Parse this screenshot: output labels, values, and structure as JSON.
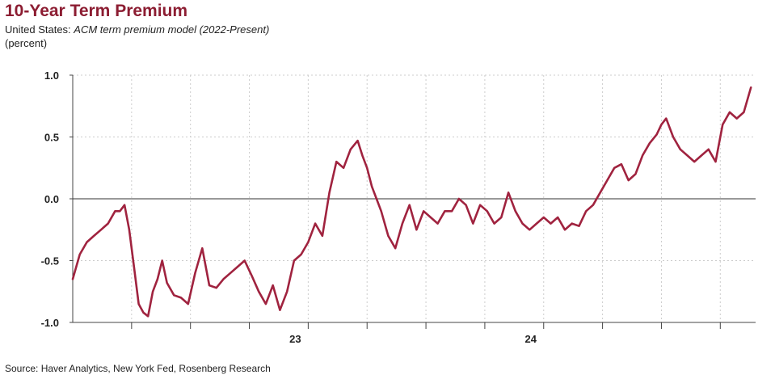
{
  "header": {
    "title": "10-Year Term Premium",
    "subtitle_prefix": "United States: ",
    "subtitle_model": "ACM term premium model (2022-Present)",
    "units": "(percent)"
  },
  "footer": {
    "source": "Source: Haver Analytics, New York Fed, Rosenberg Research"
  },
  "colors": {
    "line": "#a0233f",
    "grid": "#cccccc",
    "axis": "#444444",
    "title": "#8c1d32"
  },
  "chart_data": {
    "type": "line",
    "title": "10-Year Term Premium",
    "ylabel": "(percent)",
    "ylim": [
      -1.0,
      1.0
    ],
    "yticks": [
      1.0,
      0.5,
      0.0,
      -0.5,
      -1.0
    ],
    "ytick_labels": [
      "1.0",
      "0.5",
      "0.0",
      "-0.5",
      "-1.0"
    ],
    "xlim": [
      2022.0,
      2024.9
    ],
    "xticks": [
      2022.25,
      2022.5,
      2022.75,
      2023.0,
      2023.25,
      2023.5,
      2023.75,
      2024.0,
      2024.25,
      2024.5,
      2024.75
    ],
    "xtick_labels": [
      {
        "x": 2023.0,
        "label": "23"
      },
      {
        "x": 2024.0,
        "label": "24"
      }
    ],
    "grid": true,
    "legend": "none",
    "series": [
      {
        "x": [
          2022.0,
          2022.03,
          2022.06,
          2022.09,
          2022.12,
          2022.15,
          2022.18,
          2022.2,
          2022.22,
          2022.24,
          2022.26,
          2022.28,
          2022.3,
          2022.32,
          2022.34,
          2022.36,
          2022.38,
          2022.4,
          2022.43,
          2022.46,
          2022.49,
          2022.52,
          2022.55,
          2022.58,
          2022.61,
          2022.64,
          2022.67,
          2022.7,
          2022.73,
          2022.76,
          2022.79,
          2022.82,
          2022.85,
          2022.88,
          2022.91,
          2022.94,
          2022.97,
          2023.0,
          2023.03,
          2023.06,
          2023.09,
          2023.12,
          2023.15,
          2023.18,
          2023.21,
          2023.23,
          2023.25,
          2023.27,
          2023.29,
          2023.31,
          2023.34,
          2023.37,
          2023.4,
          2023.43,
          2023.46,
          2023.49,
          2023.52,
          2023.55,
          2023.58,
          2023.61,
          2023.64,
          2023.67,
          2023.7,
          2023.73,
          2023.76,
          2023.79,
          2023.82,
          2023.85,
          2023.88,
          2023.91,
          2023.94,
          2023.97,
          2024.0,
          2024.03,
          2024.06,
          2024.09,
          2024.12,
          2024.15,
          2024.18,
          2024.21,
          2024.24,
          2024.27,
          2024.3,
          2024.33,
          2024.36,
          2024.39,
          2024.42,
          2024.45,
          2024.48,
          2024.5,
          2024.52,
          2024.55,
          2024.58,
          2024.61,
          2024.64,
          2024.67,
          2024.7,
          2024.73,
          2024.76,
          2024.79,
          2024.82,
          2024.85,
          2024.88
        ],
        "y": [
          -0.65,
          -0.45,
          -0.35,
          -0.3,
          -0.25,
          -0.2,
          -0.1,
          -0.1,
          -0.05,
          -0.25,
          -0.55,
          -0.85,
          -0.92,
          -0.95,
          -0.75,
          -0.65,
          -0.5,
          -0.68,
          -0.78,
          -0.8,
          -0.85,
          -0.6,
          -0.4,
          -0.7,
          -0.72,
          -0.65,
          -0.6,
          -0.55,
          -0.5,
          -0.62,
          -0.75,
          -0.85,
          -0.7,
          -0.9,
          -0.75,
          -0.5,
          -0.45,
          -0.35,
          -0.2,
          -0.3,
          0.05,
          0.3,
          0.25,
          0.4,
          0.47,
          0.35,
          0.25,
          0.1,
          0.0,
          -0.1,
          -0.3,
          -0.4,
          -0.2,
          -0.05,
          -0.25,
          -0.1,
          -0.15,
          -0.2,
          -0.1,
          -0.1,
          0.0,
          -0.05,
          -0.2,
          -0.05,
          -0.1,
          -0.2,
          -0.15,
          0.05,
          -0.1,
          -0.2,
          -0.25,
          -0.2,
          -0.15,
          -0.2,
          -0.15,
          -0.25,
          -0.2,
          -0.22,
          -0.1,
          -0.05,
          0.05,
          0.15,
          0.25,
          0.28,
          0.15,
          0.2,
          0.35,
          0.45,
          0.52,
          0.6,
          0.65,
          0.5,
          0.4,
          0.35,
          0.3,
          0.35,
          0.4,
          0.3,
          0.6,
          0.7,
          0.65,
          0.7,
          0.9
        ]
      }
    ]
  }
}
